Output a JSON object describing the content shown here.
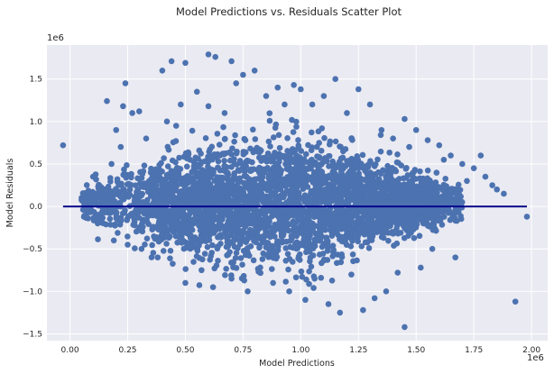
{
  "chart_data": {
    "type": "scatter",
    "title": "Model Predictions vs. Residuals Scatter Plot",
    "xlabel": "Model Predictions",
    "ylabel": "Model Residuals",
    "x_offset_label": "1e6",
    "y_offset_label": "1e6",
    "xlim": [
      -0.1,
      2.07
    ],
    "ylim": [
      -1.58,
      1.9
    ],
    "x_ticks": [
      0.0,
      0.25,
      0.5,
      0.75,
      1.0,
      1.25,
      1.5,
      1.75,
      2.0
    ],
    "x_tick_labels": [
      "0.00",
      "0.25",
      "0.50",
      "0.75",
      "1.00",
      "1.25",
      "1.50",
      "1.75",
      "2.00"
    ],
    "y_ticks": [
      -1.5,
      -1.0,
      -0.5,
      0.0,
      0.5,
      1.0,
      1.5
    ],
    "y_tick_labels": [
      "−1.5",
      "−1.0",
      "−0.5",
      "0.0",
      "0.5",
      "1.0",
      "1.5"
    ],
    "grid": true,
    "reference_line": {
      "y": 0.0,
      "x_start": -0.03,
      "x_end": 1.98,
      "color": "#00008b"
    },
    "marker_color": "#4c72b0",
    "background_color": "#eaeaf2",
    "gridline_color": "#ffffff",
    "series": [
      {
        "x": [
          -0.03,
          0.07,
          0.1,
          0.12,
          0.15,
          0.16,
          0.18,
          0.19,
          0.2,
          0.22,
          0.23,
          0.24,
          0.25,
          0.26,
          0.27,
          0.3,
          0.31,
          0.33,
          0.35,
          0.38,
          0.4,
          0.42,
          0.44,
          0.45,
          0.46,
          0.48,
          0.5,
          0.5,
          0.52,
          0.55,
          0.57,
          0.6,
          0.6,
          0.62,
          0.63,
          0.65,
          0.67,
          0.7,
          0.7,
          0.72,
          0.75,
          0.77,
          0.8,
          0.82,
          0.85,
          0.88,
          0.9,
          0.93,
          0.95,
          0.97,
          1.0,
          1.02,
          1.05,
          1.07,
          1.1,
          1.12,
          1.15,
          1.17,
          1.2,
          1.22,
          1.25,
          1.27,
          1.3,
          1.32,
          1.35,
          1.37,
          1.4,
          1.42,
          1.45,
          1.45,
          1.47,
          1.5,
          1.52,
          1.55,
          1.57,
          1.6,
          1.62,
          1.65,
          1.67,
          1.7,
          1.72,
          1.75,
          1.78,
          1.8,
          1.83,
          1.85,
          1.88,
          1.93,
          1.98
        ],
        "y": [
          0.72,
          0.1,
          0.35,
          -0.2,
          0.2,
          1.24,
          0.5,
          -0.4,
          0.9,
          0.7,
          1.18,
          1.45,
          -0.45,
          0.2,
          1.1,
          1.12,
          -0.5,
          0.8,
          0.4,
          -0.6,
          1.6,
          1.0,
          1.71,
          -0.3,
          0.95,
          1.2,
          1.69,
          -0.9,
          0.3,
          1.35,
          -0.75,
          1.79,
          1.18,
          -0.95,
          1.76,
          0.6,
          1.1,
          1.71,
          -0.85,
          1.45,
          1.55,
          -1.0,
          1.6,
          0.4,
          1.3,
          -0.9,
          1.4,
          1.2,
          -1.0,
          1.43,
          1.38,
          -1.1,
          1.2,
          0.7,
          1.3,
          -1.15,
          1.5,
          -1.25,
          1.1,
          0.8,
          1.38,
          -1.22,
          1.2,
          -1.08,
          0.9,
          -1.0,
          0.8,
          -0.78,
          1.03,
          -1.42,
          0.7,
          0.9,
          -0.72,
          0.78,
          -0.5,
          0.72,
          0.55,
          0.6,
          -0.6,
          0.5,
          0.3,
          0.45,
          0.6,
          0.35,
          0.25,
          0.2,
          0.15,
          -1.12,
          -0.12
        ]
      }
    ]
  }
}
